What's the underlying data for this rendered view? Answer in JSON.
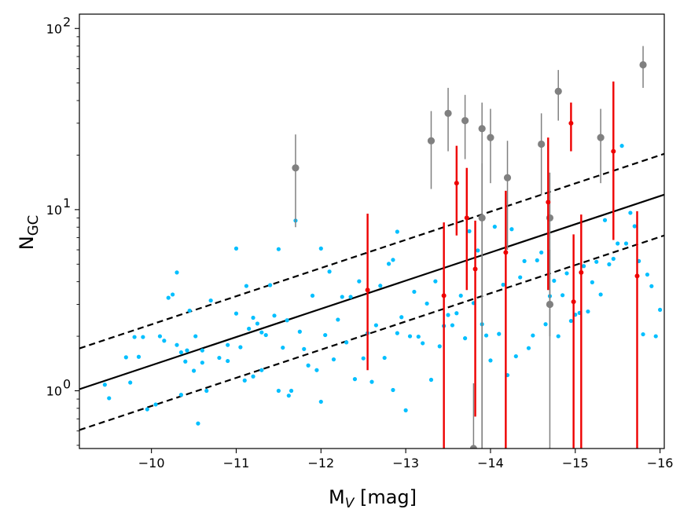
{
  "chart_data": {
    "type": "scatter",
    "title": "",
    "xlabel": {
      "main": "M",
      "sub": "V",
      "rest": " [mag]"
    },
    "ylabel": {
      "main": "N",
      "sub": "GC"
    },
    "x_axis": {
      "range": [
        -9.15,
        -16.05
      ],
      "inverted": true,
      "ticks": [
        -10,
        -11,
        -12,
        -13,
        -14,
        -15,
        -16
      ],
      "tick_labels": [
        "−10",
        "−11",
        "−12",
        "−13",
        "−14",
        "−15",
        "−16"
      ]
    },
    "y_axis": {
      "scale": "log",
      "range": [
        0.48,
        120
      ],
      "ticks": [
        1,
        10,
        100
      ],
      "tick_labels": [
        {
          "base": "10",
          "exp": "0"
        },
        {
          "base": "10",
          "exp": "1"
        },
        {
          "base": "10",
          "exp": "2"
        }
      ]
    },
    "colors": {
      "cyan": "#00bfff",
      "gray": "#808080",
      "red": "#ee0000",
      "line": "#000000"
    },
    "fit": {
      "x": [
        -9.15,
        -16.05
      ],
      "y": [
        1.02,
        12.1
      ],
      "scatter_factor": 1.68
    },
    "series": [
      {
        "name": "cyan sample",
        "color": "#00bfff",
        "points": [
          [
            -9.45,
            1.08
          ],
          [
            -9.5,
            0.91
          ],
          [
            -9.7,
            1.53
          ],
          [
            -9.75,
            1.11
          ],
          [
            -9.8,
            1.98
          ],
          [
            -9.85,
            1.54
          ],
          [
            -9.9,
            1.98
          ],
          [
            -9.95,
            0.79
          ],
          [
            -10.05,
            0.84
          ],
          [
            -10.1,
            2.0
          ],
          [
            -10.15,
            1.89
          ],
          [
            -10.2,
            3.26
          ],
          [
            -10.25,
            3.4
          ],
          [
            -10.3,
            1.79
          ],
          [
            -10.3,
            4.5
          ],
          [
            -10.35,
            1.63
          ],
          [
            -10.35,
            0.95
          ],
          [
            -10.4,
            1.45
          ],
          [
            -10.42,
            1.67
          ],
          [
            -10.45,
            2.77
          ],
          [
            -10.5,
            1.29
          ],
          [
            -10.52,
            2.0
          ],
          [
            -10.55,
            0.66
          ],
          [
            -10.6,
            1.43
          ],
          [
            -10.6,
            1.67
          ],
          [
            -10.65,
            1.0
          ],
          [
            -10.7,
            3.15
          ],
          [
            -10.8,
            1.52
          ],
          [
            -10.9,
            1.46
          ],
          [
            -10.9,
            1.79
          ],
          [
            -11.0,
            2.67
          ],
          [
            -11.0,
            6.1
          ],
          [
            -11.05,
            1.74
          ],
          [
            -11.1,
            1.14
          ],
          [
            -11.12,
            3.79
          ],
          [
            -11.15,
            2.2
          ],
          [
            -11.2,
            1.2
          ],
          [
            -11.2,
            2.53
          ],
          [
            -11.25,
            2.35
          ],
          [
            -11.3,
            1.3
          ],
          [
            -11.3,
            2.1
          ],
          [
            -11.35,
            2.03
          ],
          [
            -11.4,
            3.83
          ],
          [
            -11.45,
            2.6
          ],
          [
            -11.5,
            6.05
          ],
          [
            -11.5,
            1.0
          ],
          [
            -11.55,
            1.73
          ],
          [
            -11.6,
            2.45
          ],
          [
            -11.62,
            0.94
          ],
          [
            -11.65,
            1.0
          ],
          [
            -11.7,
            8.7
          ],
          [
            -11.75,
            2.12
          ],
          [
            -11.8,
            1.7
          ],
          [
            -11.85,
            1.38
          ],
          [
            -11.9,
            3.35
          ],
          [
            -11.95,
            1.3
          ],
          [
            -12.0,
            6.1
          ],
          [
            -12.0,
            0.87
          ],
          [
            -12.05,
            2.03
          ],
          [
            -12.1,
            4.55
          ],
          [
            -12.15,
            1.49
          ],
          [
            -12.2,
            2.47
          ],
          [
            -12.25,
            3.3
          ],
          [
            -12.3,
            1.85
          ],
          [
            -12.35,
            3.3
          ],
          [
            -12.4,
            1.16
          ],
          [
            -12.45,
            4.02
          ],
          [
            -12.5,
            1.51
          ],
          [
            -12.55,
            2.08
          ],
          [
            -12.6,
            1.12
          ],
          [
            -12.65,
            2.3
          ],
          [
            -12.7,
            3.8
          ],
          [
            -12.75,
            1.52
          ],
          [
            -12.8,
            5.02
          ],
          [
            -12.85,
            1.01
          ],
          [
            -12.85,
            5.28
          ],
          [
            -12.9,
            2.08
          ],
          [
            -12.9,
            7.55
          ],
          [
            -12.95,
            2.55
          ],
          [
            -13.0,
            0.78
          ],
          [
            -13.05,
            2.0
          ],
          [
            -13.1,
            3.52
          ],
          [
            -13.15,
            1.99
          ],
          [
            -13.2,
            1.83
          ],
          [
            -13.25,
            3.03
          ],
          [
            -13.3,
            1.15
          ],
          [
            -13.35,
            4.02
          ],
          [
            -13.4,
            1.76
          ],
          [
            -13.45,
            2.28
          ],
          [
            -13.5,
            2.62
          ],
          [
            -13.55,
            2.3
          ],
          [
            -13.6,
            2.68
          ],
          [
            -13.65,
            3.35
          ],
          [
            -13.7,
            1.95
          ],
          [
            -13.75,
            7.6
          ],
          [
            -13.8,
            3.05
          ],
          [
            -13.85,
            5.95
          ],
          [
            -13.9,
            2.33
          ],
          [
            -13.95,
            2.02
          ],
          [
            -14.0,
            1.47
          ],
          [
            -14.05,
            8.05
          ],
          [
            -14.1,
            2.06
          ],
          [
            -14.15,
            3.85
          ],
          [
            -14.2,
            1.22
          ],
          [
            -14.25,
            7.8
          ],
          [
            -14.3,
            1.55
          ],
          [
            -14.35,
            4.23
          ],
          [
            -14.4,
            5.2
          ],
          [
            -14.45,
            1.72
          ],
          [
            -14.5,
            2.02
          ],
          [
            -14.55,
            5.25
          ],
          [
            -14.6,
            5.8
          ],
          [
            -14.65,
            2.33
          ],
          [
            -14.7,
            3.33
          ],
          [
            -14.75,
            4.05
          ],
          [
            -14.8,
            2.0
          ],
          [
            -14.85,
            3.37
          ],
          [
            -14.9,
            4.45
          ],
          [
            -14.95,
            2.43
          ],
          [
            -15.0,
            2.63
          ],
          [
            -15.05,
            2.69
          ],
          [
            -15.1,
            4.88
          ],
          [
            -15.15,
            2.74
          ],
          [
            -15.2,
            3.97
          ],
          [
            -15.25,
            5.15
          ],
          [
            -15.3,
            3.4
          ],
          [
            -15.35,
            8.75
          ],
          [
            -15.4,
            4.99
          ],
          [
            -15.45,
            5.35
          ],
          [
            -15.5,
            6.5
          ],
          [
            -15.55,
            22.5
          ],
          [
            -15.6,
            6.5
          ],
          [
            -15.65,
            9.6
          ],
          [
            -15.7,
            8.1
          ],
          [
            -15.75,
            5.2
          ],
          [
            -15.8,
            2.05
          ],
          [
            -15.85,
            4.38
          ],
          [
            -15.9,
            3.78
          ],
          [
            -15.95,
            2.0
          ],
          [
            -16.0,
            2.8
          ]
        ]
      },
      {
        "name": "gray with error bars",
        "color": "#808080",
        "points": [
          {
            "x": -11.7,
            "y": 17,
            "lo": 8,
            "hi": 26
          },
          {
            "x": -13.3,
            "y": 24,
            "lo": 13,
            "hi": 35
          },
          {
            "x": -13.5,
            "y": 34,
            "lo": 21,
            "hi": 47
          },
          {
            "x": -13.7,
            "y": 31,
            "lo": 19,
            "hi": 43
          },
          {
            "x": -13.8,
            "y": 0.48,
            "lo": 0.48,
            "hi": 1.1
          },
          {
            "x": -13.9,
            "y": 28,
            "lo": 0.48,
            "hi": 39
          },
          {
            "x": -13.9,
            "y": 9,
            "lo": 0.48,
            "hi": 18
          },
          {
            "x": -14.0,
            "y": 25,
            "lo": 14,
            "hi": 36
          },
          {
            "x": -14.2,
            "y": 15,
            "lo": 6,
            "hi": 24
          },
          {
            "x": -14.6,
            "y": 23,
            "lo": 12,
            "hi": 34
          },
          {
            "x": -14.7,
            "y": 9,
            "lo": 2,
            "hi": 16
          },
          {
            "x": -14.7,
            "y": 3,
            "lo": 0.48,
            "hi": 6
          },
          {
            "x": -14.8,
            "y": 45,
            "lo": 31,
            "hi": 59
          },
          {
            "x": -15.3,
            "y": 25,
            "lo": 14,
            "hi": 36
          },
          {
            "x": -15.8,
            "y": 63,
            "lo": 47,
            "hi": 80
          }
        ]
      },
      {
        "name": "red with error bars",
        "color": "#ee0000",
        "points": [
          {
            "x": -12.55,
            "y": 3.6,
            "lo": 1.3,
            "hi": 9.5
          },
          {
            "x": -13.45,
            "y": 3.35,
            "lo": 0.48,
            "hi": 8.5
          },
          {
            "x": -13.6,
            "y": 14,
            "lo": 7.2,
            "hi": 22.5
          },
          {
            "x": -13.72,
            "y": 9,
            "lo": 3.6,
            "hi": 17
          },
          {
            "x": -13.82,
            "y": 4.7,
            "lo": 0.72,
            "hi": 8.7
          },
          {
            "x": -14.18,
            "y": 5.8,
            "lo": 0.48,
            "hi": 12.7
          },
          {
            "x": -14.68,
            "y": 11,
            "lo": 3.6,
            "hi": 25
          },
          {
            "x": -14.95,
            "y": 30,
            "lo": 21,
            "hi": 39
          },
          {
            "x": -14.98,
            "y": 3.1,
            "lo": 0.48,
            "hi": 7.3
          },
          {
            "x": -15.07,
            "y": 4.5,
            "lo": 0.48,
            "hi": 9.4
          },
          {
            "x": -15.45,
            "y": 21,
            "lo": 6.8,
            "hi": 51
          },
          {
            "x": -15.73,
            "y": 4.3,
            "lo": 0.48,
            "hi": 9.8
          }
        ]
      }
    ]
  }
}
